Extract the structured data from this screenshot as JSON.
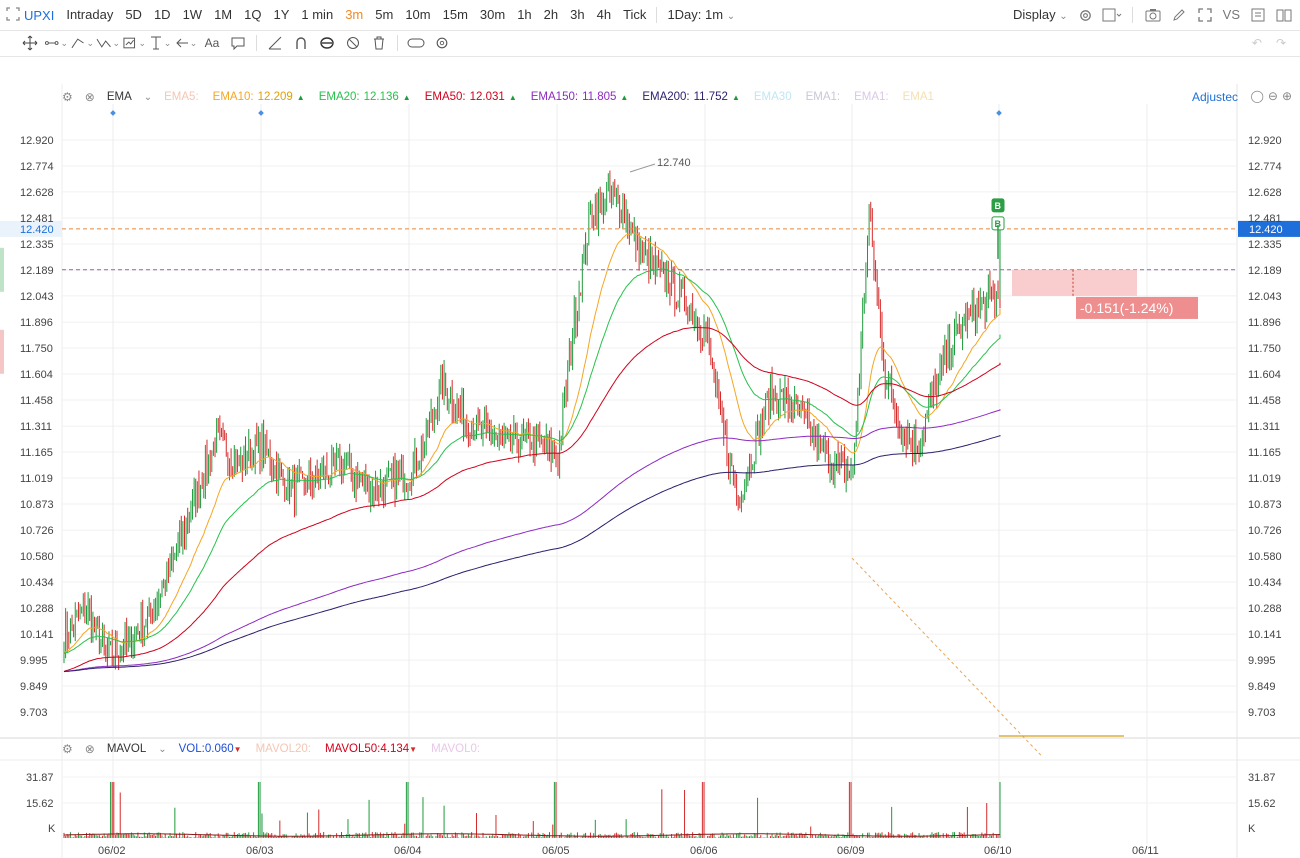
{
  "topbar": {
    "symbol": "UPXI",
    "periods": [
      "Intraday",
      "5D",
      "1D",
      "1W",
      "1M",
      "1Q",
      "1Y",
      "1 min",
      "3m",
      "5m",
      "10m",
      "15m",
      "30m",
      "1h",
      "2h",
      "3h",
      "4h",
      "Tick"
    ],
    "active_period": "3m",
    "range_label": "1Day: 1m",
    "display_label": "Display",
    "vs_label": "VS"
  },
  "colors": {
    "up": "#1e9b3c",
    "down": "#d62a2a",
    "accent": "#f08a24",
    "link": "#1e6fd9",
    "ema5": "#f4b4a0",
    "ema10": "#f5a623",
    "ema20": "#27c24c",
    "ema50": "#d0021b",
    "ema150": "#8e2ac1",
    "ema200": "#2c1e6e",
    "ema_off": "#bfe6f5",
    "dash_orange": "#e6863a",
    "dash_purple": "#8a6a9c",
    "trade_box": "#f8c4c4",
    "trade_label": "#ee8e8e"
  },
  "ema_legend": {
    "name": "EMA",
    "items": [
      {
        "label": "EMA5:",
        "value": "",
        "color": "#f4c6b4",
        "active": false
      },
      {
        "label": "EMA10:",
        "value": "12.209",
        "color": "#f5a623",
        "active": true
      },
      {
        "label": "EMA20:",
        "value": "12.136",
        "color": "#27c24c",
        "active": true
      },
      {
        "label": "EMA50:",
        "value": "12.031",
        "color": "#d0021b",
        "active": true
      },
      {
        "label": "EMA150:",
        "value": "11.805",
        "color": "#8e2ac1",
        "active": true
      },
      {
        "label": "EMA200:",
        "value": "11.752",
        "color": "#2c1e6e",
        "active": true
      },
      {
        "label": "EMA30",
        "value": "",
        "color": "#bfe6f5",
        "active": false
      },
      {
        "label": "EMA1:",
        "value": "",
        "color": "#c8c8d8",
        "active": false
      },
      {
        "label": "EMA1:",
        "value": "",
        "color": "#d8c8e8",
        "active": false
      },
      {
        "label": "EMA1",
        "value": "",
        "color": "#f5e0b0",
        "active": false
      }
    ],
    "adjusted_label": "Adjustec"
  },
  "vol_legend": {
    "name": "MAVOL",
    "items": [
      {
        "label": "VOL:",
        "value": "0.060",
        "color": "#1e4fd9",
        "active": true
      },
      {
        "label": "MAVOL20:",
        "value": "",
        "color": "#f4c6b4",
        "active": false
      },
      {
        "label": "MAVOL50:",
        "value": "4.134",
        "color": "#d0021b",
        "active": true
      },
      {
        "label": "MAVOL0:",
        "value": "",
        "color": "#e8c8e8",
        "active": false
      }
    ]
  },
  "price_axis": {
    "ticks": [
      "12.920",
      "12.774",
      "12.628",
      "12.481",
      "12.335",
      "12.189",
      "12.043",
      "11.896",
      "11.750",
      "11.604",
      "11.458",
      "11.311",
      "11.165",
      "11.019",
      "10.873",
      "10.726",
      "10.580",
      "10.434",
      "10.288",
      "10.141",
      "9.995",
      "9.849",
      "9.703"
    ],
    "current_price_label": "12.420",
    "high_label": "12.740"
  },
  "vol_axis": {
    "ticks": [
      "31.87",
      "15.62",
      "K"
    ]
  },
  "time_axis": {
    "labels": [
      "06/02",
      "06/03",
      "06/04",
      "06/05",
      "06/06",
      "06/09",
      "06/10",
      "06/11"
    ]
  },
  "trade": {
    "change_label": "-0.151(-1.24%)",
    "marker_b": "B"
  },
  "chart_data": {
    "type": "candlestick",
    "title": "UPXI",
    "interval": "3m",
    "ylim": [
      9.6,
      13.0
    ],
    "current_price": 12.42,
    "reference_price": 12.19,
    "day_high": 12.74,
    "days": [
      {
        "date": "06/02",
        "approx_close_path": [
          10.12,
          10.3,
          10.0,
          10.1,
          10.25,
          10.55,
          10.9,
          11.25,
          11.1,
          11.2
        ]
      },
      {
        "date": "06/03",
        "approx_close_path": [
          11.2,
          11.05,
          10.95,
          11.0,
          11.05,
          11.1,
          11.0,
          10.95,
          11.0,
          11.05
        ]
      },
      {
        "date": "06/04",
        "approx_close_path": [
          11.05,
          11.25,
          11.55,
          11.4,
          11.3,
          11.25,
          11.2,
          11.25,
          11.2,
          11.15
        ]
      },
      {
        "date": "06/05",
        "approx_close_path": [
          11.15,
          11.9,
          12.5,
          12.6,
          12.55,
          12.3,
          12.2,
          12.1,
          12.0,
          11.85
        ]
      },
      {
        "date": "06/06",
        "approx_close_path": [
          11.85,
          11.3,
          10.9,
          11.2,
          11.5,
          11.45,
          11.35,
          11.2,
          11.1,
          11.05
        ]
      },
      {
        "date": "06/09",
        "approx_close_path": [
          11.05,
          12.5,
          11.6,
          11.3,
          11.2,
          11.5,
          11.75,
          11.9,
          12.0,
          12.05
        ]
      },
      {
        "date": "06/10",
        "approx_close_path": [
          12.05,
          12.42
        ]
      }
    ],
    "ema_final": {
      "EMA10": 12.209,
      "EMA20": 12.136,
      "EMA50": 12.031,
      "EMA150": 11.805,
      "EMA200": 11.752
    },
    "volume": {
      "unit": "K",
      "axis_ticks": [
        31.87,
        15.62
      ],
      "mavol50": 4.134,
      "last_vol": 0.06
    }
  }
}
